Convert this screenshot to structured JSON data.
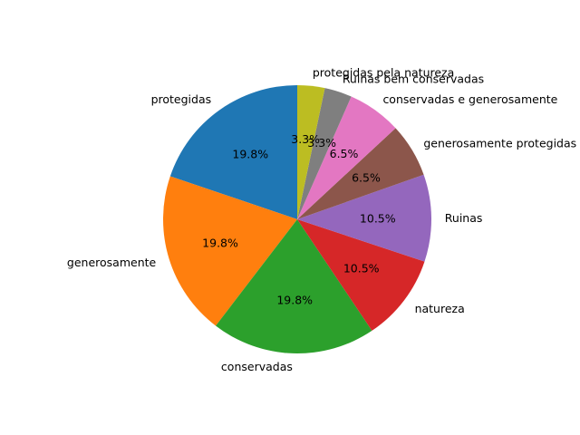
{
  "chart_data": {
    "type": "pie",
    "start_angle_deg": 90,
    "direction": "counterclockwise",
    "slices": [
      {
        "label": "protegidas",
        "value": 19.8,
        "pct_label": "19.8%",
        "color": "#1f77b4"
      },
      {
        "label": "generosamente",
        "value": 19.8,
        "pct_label": "19.8%",
        "color": "#ff7f0e"
      },
      {
        "label": "conservadas",
        "value": 19.8,
        "pct_label": "19.8%",
        "color": "#2ca02c"
      },
      {
        "label": "natureza",
        "value": 10.5,
        "pct_label": "10.5%",
        "color": "#d62728"
      },
      {
        "label": "Ruinas",
        "value": 10.5,
        "pct_label": "10.5%",
        "color": "#9467bd"
      },
      {
        "label": "generosamente protegidas",
        "value": 6.5,
        "pct_label": "6.5%",
        "color": "#8c564b"
      },
      {
        "label": "conservadas e generosamente",
        "value": 6.5,
        "pct_label": "6.5%",
        "color": "#e377c2"
      },
      {
        "label": "Ruinas bem conservadas",
        "value": 3.3,
        "pct_label": "3.3%",
        "color": "#7f7f7f"
      },
      {
        "label": "protegidas pela natureza",
        "value": 3.3,
        "pct_label": "3.3%",
        "color": "#bcbd22"
      }
    ]
  }
}
